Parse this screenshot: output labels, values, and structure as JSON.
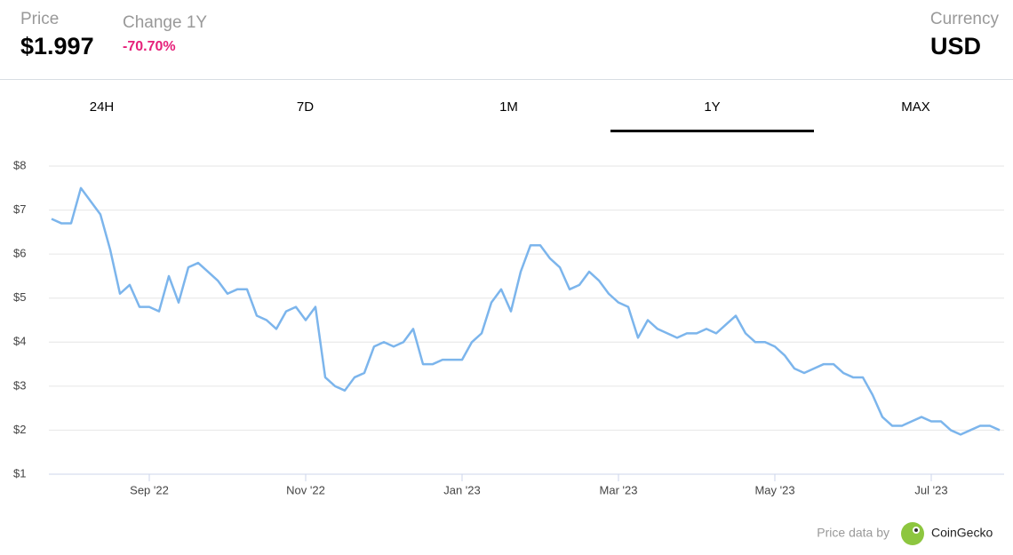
{
  "header": {
    "price_label": "Price",
    "price": "$1.997",
    "change_label": "Change 1Y",
    "change": "-70.70%",
    "currency_label": "Currency",
    "currency": "USD"
  },
  "tabs": [
    "24H",
    "7D",
    "1M",
    "1Y",
    "MAX"
  ],
  "active_tab": 3,
  "footer": {
    "text": "Price data by",
    "brand": "CoinGecko"
  },
  "chart_data": {
    "type": "line",
    "categories": [
      null,
      null,
      null,
      null,
      null,
      null,
      null,
      null,
      null,
      null,
      "Sep '22",
      null,
      null,
      null,
      null,
      null,
      null,
      null,
      null,
      null,
      null,
      null,
      null,
      null,
      null,
      null,
      "Nov '22",
      null,
      null,
      null,
      null,
      null,
      null,
      null,
      null,
      null,
      null,
      null,
      null,
      null,
      null,
      null,
      "Jan '23",
      null,
      null,
      null,
      null,
      null,
      null,
      null,
      null,
      null,
      null,
      null,
      null,
      null,
      null,
      null,
      "Mar '23",
      null,
      null,
      null,
      null,
      null,
      null,
      null,
      null,
      null,
      null,
      null,
      null,
      null,
      null,
      null,
      "May '23",
      null,
      null,
      null,
      null,
      null,
      null,
      null,
      null,
      null,
      null,
      null,
      null,
      null,
      null,
      null,
      "Jul '23",
      null,
      null,
      null,
      null,
      null,
      null,
      null
    ],
    "values": [
      6.8,
      6.7,
      6.7,
      7.5,
      7.2,
      6.9,
      6.1,
      5.1,
      5.3,
      4.8,
      4.8,
      4.7,
      5.5,
      4.9,
      5.7,
      5.8,
      5.6,
      5.4,
      5.1,
      5.2,
      5.2,
      4.6,
      4.5,
      4.3,
      4.7,
      4.8,
      4.5,
      4.8,
      3.2,
      3.0,
      2.9,
      3.2,
      3.3,
      3.9,
      4.0,
      3.9,
      4.0,
      4.3,
      3.5,
      3.5,
      3.6,
      3.6,
      3.6,
      4.0,
      4.2,
      4.9,
      5.2,
      4.7,
      5.6,
      6.2,
      6.2,
      5.9,
      5.7,
      5.2,
      5.3,
      5.6,
      5.4,
      5.1,
      4.9,
      4.8,
      4.1,
      4.5,
      4.3,
      4.2,
      4.1,
      4.2,
      4.2,
      4.3,
      4.2,
      4.4,
      4.6,
      4.2,
      4.0,
      4.0,
      3.9,
      3.7,
      3.4,
      3.3,
      3.4,
      3.5,
      3.5,
      3.3,
      3.2,
      3.2,
      2.8,
      2.3,
      2.1,
      2.1,
      2.2,
      2.3,
      2.2,
      2.2,
      2.0,
      1.9,
      2.0,
      2.1,
      2.1,
      2.0
    ],
    "color": "#7cb5ec",
    "ylim": [
      1,
      8
    ],
    "yticks": [
      {
        "value": 1,
        "label": "$1"
      },
      {
        "value": 2,
        "label": "$2"
      },
      {
        "value": 3,
        "label": "$3"
      },
      {
        "value": 4,
        "label": "$4"
      },
      {
        "value": 5,
        "label": "$5"
      },
      {
        "value": 6,
        "label": "$6"
      },
      {
        "value": 7,
        "label": "$7"
      },
      {
        "value": 8,
        "label": "$8"
      }
    ],
    "grid": true
  }
}
